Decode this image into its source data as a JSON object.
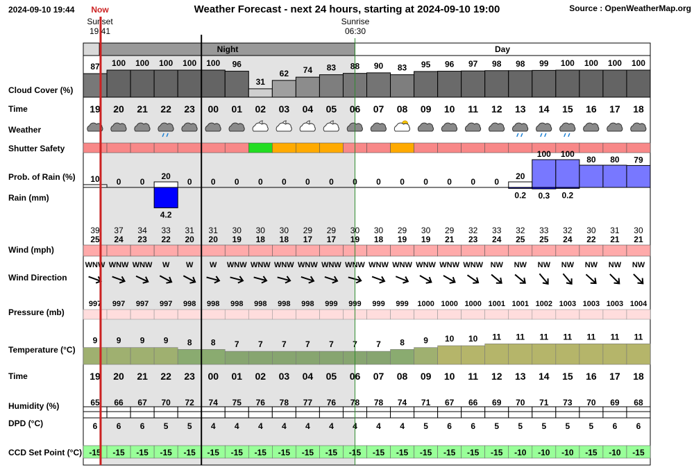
{
  "header": {
    "timestamp": "2024-09-10 19:44",
    "now_label": "Now",
    "title": "Weather Forecast - next 24 hours, starting at 2024-09-10 19:00",
    "source": "Source : OpenWeatherMap.org"
  },
  "sun": {
    "sunset_label": "Sunset",
    "sunset_time": "19:41",
    "sunrise_label": "Sunrise",
    "sunrise_time": "06:30"
  },
  "periods": {
    "night": "Night",
    "day": "Day"
  },
  "row_labels": {
    "cloud": "Cloud Cover (%)",
    "time": "Time",
    "weather": "Weather",
    "shutter": "Shutter Safety",
    "prob_rain": "Prob. of Rain (%)",
    "rain": "Rain (mm)",
    "wind": "Wind (mph)",
    "wind_dir": "Wind Direction",
    "pressure": "Pressure (mb)",
    "temperature": "Temperature (°C)",
    "time2": "Time",
    "humidity": "Humidity (%)",
    "dpd": "DPD (°C)",
    "ccd": "CCD Set Point (°C)"
  },
  "colors": {
    "night_shade": "#e3e3e3",
    "now_line": "#cc2222",
    "sunrise_line": "#2e8b2e",
    "shutter_red": "#f88888",
    "shutter_green": "#22dd22",
    "shutter_orange": "#ffaa00",
    "rain_bar": "#0000ff",
    "prob_rain_bar": "#7878ff",
    "wind_bar": "#ffaaaa",
    "pressure_bar": "#ffdddd",
    "ccd_bar": "#99ff99"
  },
  "chart_data": {
    "type": "table",
    "hours": [
      "19",
      "20",
      "21",
      "22",
      "23",
      "00",
      "01",
      "02",
      "03",
      "04",
      "05",
      "06",
      "07",
      "08",
      "09",
      "10",
      "11",
      "12",
      "13",
      "14",
      "15",
      "16",
      "17",
      "18"
    ],
    "cloud_cover": [
      87,
      100,
      100,
      100,
      100,
      100,
      96,
      31,
      62,
      74,
      83,
      88,
      90,
      83,
      95,
      96,
      97,
      98,
      98,
      99,
      100,
      100,
      100,
      100
    ],
    "weather_icons": [
      "cloud-icon",
      "cloud-icon",
      "cloud-icon",
      "rain-cloud-icon",
      "cloud-icon",
      "cloud-icon",
      "cloud-icon",
      "moon-cloud-icon",
      "moon-cloud-icon",
      "moon-cloud-icon",
      "moon-cloud-icon",
      "cloud-icon",
      "cloud-icon",
      "sun-cloud-icon",
      "cloud-icon",
      "cloud-icon",
      "cloud-icon",
      "cloud-icon",
      "rain-cloud-icon",
      "rain-cloud-icon",
      "rain-cloud-icon",
      "cloud-icon",
      "cloud-icon",
      "cloud-icon"
    ],
    "shutter_safety": [
      "red",
      "red",
      "red",
      "red",
      "red",
      "red",
      "red",
      "green",
      "orange",
      "orange",
      "orange",
      "red",
      "red",
      "orange",
      "red",
      "red",
      "red",
      "red",
      "red",
      "red",
      "red",
      "red",
      "red",
      "red"
    ],
    "prob_rain": [
      10,
      0,
      0,
      20,
      0,
      0,
      0,
      0,
      0,
      0,
      0,
      0,
      0,
      0,
      0,
      0,
      0,
      0,
      20,
      100,
      100,
      80,
      80,
      79
    ],
    "rain_mm": [
      null,
      null,
      null,
      4.2,
      null,
      null,
      null,
      null,
      null,
      null,
      null,
      null,
      null,
      null,
      null,
      null,
      null,
      null,
      0.2,
      0.3,
      0.2,
      null,
      null,
      null
    ],
    "wind_gust": [
      39,
      37,
      34,
      33,
      31,
      31,
      30,
      30,
      30,
      29,
      29,
      30,
      30,
      29,
      30,
      29,
      32,
      33,
      32,
      33,
      32,
      30,
      31,
      30
    ],
    "wind_speed": [
      25,
      24,
      23,
      22,
      20,
      20,
      19,
      18,
      18,
      17,
      17,
      19,
      18,
      19,
      19,
      21,
      23,
      24,
      25,
      25,
      24,
      22,
      21,
      21
    ],
    "wind_direction": [
      "WNW",
      "WNW",
      "WNW",
      "W",
      "W",
      "W",
      "WNW",
      "WNW",
      "WNW",
      "WNW",
      "WNW",
      "WNW",
      "WNW",
      "WNW",
      "WNW",
      "WNW",
      "WNW",
      "NW",
      "NW",
      "NW",
      "NW",
      "NW",
      "NW",
      "NW"
    ],
    "wind_arrow_deg": [
      20,
      20,
      25,
      28,
      28,
      15,
      15,
      15,
      15,
      18,
      18,
      15,
      20,
      22,
      30,
      30,
      35,
      40,
      40,
      50,
      50,
      42,
      45,
      45
    ],
    "pressure": [
      997,
      997,
      997,
      997,
      998,
      998,
      998,
      998,
      998,
      998,
      999,
      999,
      999,
      999,
      1000,
      1000,
      1000,
      1001,
      1001,
      1002,
      1003,
      1003,
      1003,
      1004
    ],
    "temperature": [
      9,
      9,
      9,
      9,
      8,
      8,
      7,
      7,
      7,
      7,
      7,
      7,
      7,
      8,
      9,
      10,
      10,
      11,
      11,
      11,
      11,
      11,
      11,
      11
    ],
    "humidity": [
      65,
      66,
      67,
      70,
      72,
      74,
      75,
      76,
      78,
      77,
      76,
      78,
      78,
      74,
      71,
      67,
      66,
      69,
      70,
      71,
      73,
      70,
      69,
      68
    ],
    "dpd": [
      6,
      6,
      6,
      5,
      5,
      4,
      4,
      4,
      4,
      4,
      4,
      4,
      4,
      4,
      5,
      6,
      6,
      5,
      5,
      5,
      5,
      5,
      6,
      6
    ],
    "ccd_set_point": [
      -15,
      -15,
      -15,
      -15,
      -15,
      -15,
      -15,
      -15,
      -15,
      -15,
      -15,
      -15,
      -15,
      -15,
      -15,
      -15,
      -15,
      -15,
      -10,
      -10,
      -10,
      -15,
      -10,
      -15
    ]
  }
}
